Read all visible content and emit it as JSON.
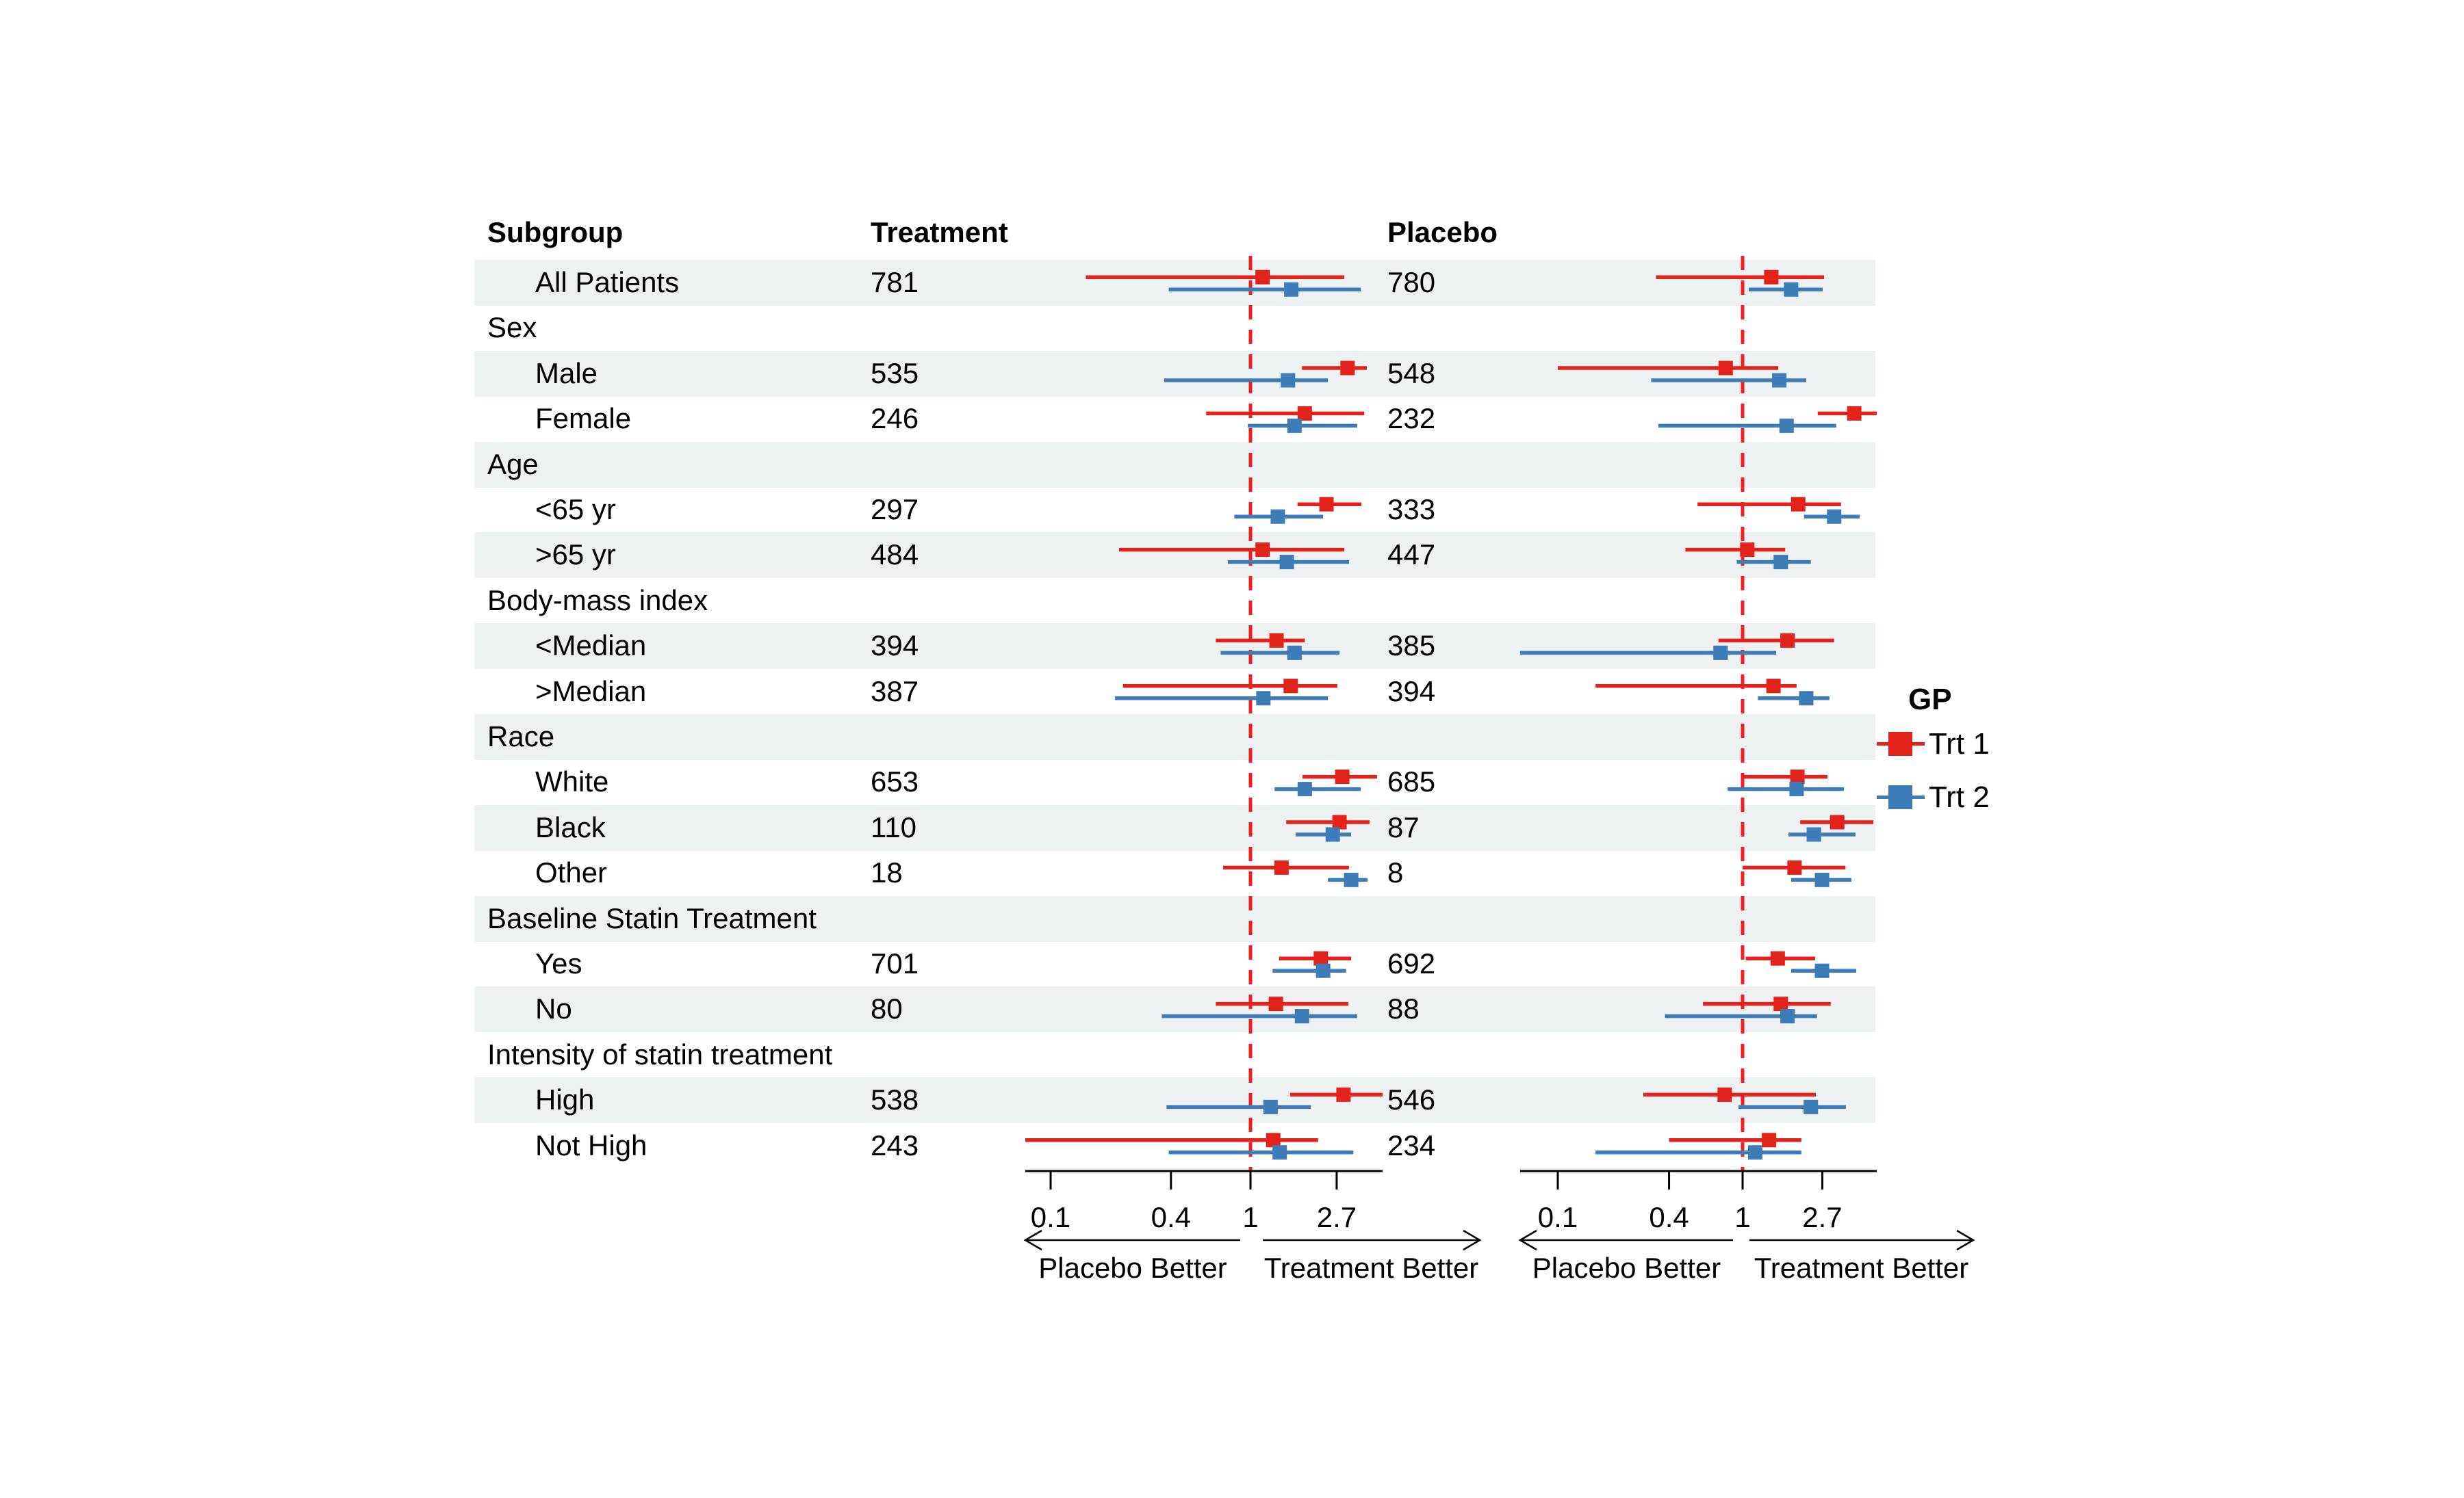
{
  "colors": {
    "trt1": "#E2231C",
    "trt2": "#3E7CB7",
    "reference_line": "#EE2024",
    "band": "#EDF1F2",
    "axis": "#000000"
  },
  "columns": {
    "subgroup": "Subgroup",
    "treatment": "Treatment",
    "placebo": "Placebo"
  },
  "legend": {
    "title": "GP",
    "items": [
      {
        "label": "Trt 1",
        "series": "trt1"
      },
      {
        "label": "Trt 2",
        "series": "trt2"
      }
    ]
  },
  "chart_data": {
    "type": "scatter",
    "variant": "forest-plot",
    "x_scale": "log",
    "x_ticks": [
      "0.1",
      "0.4",
      "1",
      "2.7"
    ],
    "x_tick_values": [
      0.1,
      0.4,
      1,
      2.7
    ],
    "reference_value": 1,
    "direction_labels": {
      "left": "Placebo Better",
      "right": "Treatment Better"
    },
    "series_names": [
      "Trt 1",
      "Trt 2"
    ],
    "rows": [
      {
        "label": "All Patients",
        "section_header": false,
        "treatment_n": "781",
        "placebo_n": "780",
        "panel1": {
          "trt1": {
            "est": 1.15,
            "lo": 0.15,
            "hi": 2.95
          },
          "trt2": {
            "est": 1.6,
            "lo": 0.39,
            "hi": 3.56
          }
        },
        "panel2": {
          "trt1": {
            "est": 1.43,
            "lo": 0.34,
            "hi": 2.76
          },
          "trt2": {
            "est": 1.83,
            "lo": 1.08,
            "hi": 2.71
          }
        }
      },
      {
        "label": "Sex",
        "section_header": true
      },
      {
        "label": "Male",
        "section_header": false,
        "treatment_n": "535",
        "placebo_n": "548",
        "panel1": {
          "trt1": {
            "est": 3.06,
            "lo": 1.81,
            "hi": 3.82
          },
          "trt2": {
            "est": 1.54,
            "lo": 0.37,
            "hi": 2.44
          }
        },
        "panel2": {
          "trt1": {
            "est": 0.81,
            "lo": 0.1,
            "hi": 1.56
          },
          "trt2": {
            "est": 1.58,
            "lo": 0.32,
            "hi": 2.21
          }
        }
      },
      {
        "label": "Female",
        "section_header": false,
        "treatment_n": "246",
        "placebo_n": "232",
        "panel1": {
          "trt1": {
            "est": 1.87,
            "lo": 0.6,
            "hi": 3.71
          },
          "trt2": {
            "est": 1.66,
            "lo": 0.97,
            "hi": 3.42
          }
        },
        "panel2": {
          "trt1": {
            "est": 4.02,
            "lo": 2.55,
            "hi": 5.6
          },
          "trt2": {
            "est": 1.73,
            "lo": 0.35,
            "hi": 3.21
          }
        }
      },
      {
        "label": "Age",
        "section_header": true
      },
      {
        "label": "<65 yr",
        "section_header": false,
        "treatment_n": "297",
        "placebo_n": "333",
        "panel1": {
          "trt1": {
            "est": 2.4,
            "lo": 1.72,
            "hi": 3.59
          },
          "trt2": {
            "est": 1.37,
            "lo": 0.83,
            "hi": 2.31
          }
        },
        "panel2": {
          "trt1": {
            "est": 2.0,
            "lo": 0.57,
            "hi": 3.41
          },
          "trt2": {
            "est": 3.13,
            "lo": 2.15,
            "hi": 4.3
          }
        }
      },
      {
        "label": ">65 yr",
        "section_header": false,
        "treatment_n": "484",
        "placebo_n": "447",
        "panel1": {
          "trt1": {
            "est": 1.15,
            "lo": 0.22,
            "hi": 2.95
          },
          "trt2": {
            "est": 1.52,
            "lo": 0.77,
            "hi": 3.11
          }
        },
        "panel2": {
          "trt1": {
            "est": 1.06,
            "lo": 0.49,
            "hi": 1.7
          },
          "trt2": {
            "est": 1.61,
            "lo": 0.93,
            "hi": 2.34
          }
        }
      },
      {
        "label": "Body-mass index",
        "section_header": true
      },
      {
        "label": "<Median",
        "section_header": false,
        "treatment_n": "394",
        "placebo_n": "385",
        "panel1": {
          "trt1": {
            "est": 1.35,
            "lo": 0.67,
            "hi": 1.87
          },
          "trt2": {
            "est": 1.66,
            "lo": 0.71,
            "hi": 2.79
          }
        },
        "panel2": {
          "trt1": {
            "est": 1.75,
            "lo": 0.74,
            "hi": 3.13
          },
          "trt2": {
            "est": 0.76,
            "lo": 0.06,
            "hi": 1.52
          }
        }
      },
      {
        "label": ">Median",
        "section_header": false,
        "treatment_n": "387",
        "placebo_n": "394",
        "panel1": {
          "trt1": {
            "est": 1.59,
            "lo": 0.23,
            "hi": 2.72
          },
          "trt2": {
            "est": 1.16,
            "lo": 0.21,
            "hi": 2.44
          }
        },
        "panel2": {
          "trt1": {
            "est": 1.47,
            "lo": 0.16,
            "hi": 1.96
          },
          "trt2": {
            "est": 2.21,
            "lo": 1.21,
            "hi": 2.95
          }
        }
      },
      {
        "label": "Race",
        "section_header": true
      },
      {
        "label": "White",
        "section_header": false,
        "treatment_n": "653",
        "placebo_n": "685",
        "panel1": {
          "trt1": {
            "est": 2.88,
            "lo": 1.82,
            "hi": 4.3
          },
          "trt2": {
            "est": 1.87,
            "lo": 1.32,
            "hi": 3.56
          }
        },
        "panel2": {
          "trt1": {
            "est": 1.98,
            "lo": 1.0,
            "hi": 2.88
          },
          "trt2": {
            "est": 1.96,
            "lo": 0.83,
            "hi": 3.53
          }
        }
      },
      {
        "label": "Black",
        "section_header": false,
        "treatment_n": "110",
        "placebo_n": "87",
        "panel1": {
          "trt1": {
            "est": 2.79,
            "lo": 1.51,
            "hi": 3.94
          },
          "trt2": {
            "est": 2.58,
            "lo": 1.68,
            "hi": 3.19
          }
        },
        "panel2": {
          "trt1": {
            "est": 3.25,
            "lo": 2.05,
            "hi": 5.1
          },
          "trt2": {
            "est": 2.43,
            "lo": 1.77,
            "hi": 4.08
          }
        }
      },
      {
        "label": "Other",
        "section_header": false,
        "treatment_n": "18",
        "placebo_n": "8",
        "panel1": {
          "trt1": {
            "est": 1.43,
            "lo": 0.73,
            "hi": 3.11
          },
          "trt2": {
            "est": 3.19,
            "lo": 2.44,
            "hi": 3.85
          }
        },
        "panel2": {
          "trt1": {
            "est": 1.91,
            "lo": 1.0,
            "hi": 3.6
          },
          "trt2": {
            "est": 2.69,
            "lo": 1.83,
            "hi": 3.88
          }
        }
      },
      {
        "label": "Baseline Statin Treatment",
        "section_header": true
      },
      {
        "label": "Yes",
        "section_header": false,
        "treatment_n": "701",
        "placebo_n": "692",
        "panel1": {
          "trt1": {
            "est": 2.25,
            "lo": 1.39,
            "hi": 3.19
          },
          "trt2": {
            "est": 2.31,
            "lo": 1.29,
            "hi": 3.01
          }
        },
        "panel2": {
          "trt1": {
            "est": 1.55,
            "lo": 1.04,
            "hi": 2.47
          },
          "trt2": {
            "est": 2.69,
            "lo": 1.83,
            "hi": 4.12
          }
        }
      },
      {
        "label": "No",
        "section_header": false,
        "treatment_n": "80",
        "placebo_n": "88",
        "panel1": {
          "trt1": {
            "est": 1.34,
            "lo": 0.67,
            "hi": 3.09
          },
          "trt2": {
            "est": 1.81,
            "lo": 0.36,
            "hi": 3.42
          }
        },
        "panel2": {
          "trt1": {
            "est": 1.61,
            "lo": 0.61,
            "hi": 3.0
          },
          "trt2": {
            "est": 1.75,
            "lo": 0.38,
            "hi": 2.53
          }
        }
      },
      {
        "label": "Intensity of statin treatment",
        "section_header": true
      },
      {
        "label": "High",
        "section_header": false,
        "treatment_n": "538",
        "placebo_n": "546",
        "panel1": {
          "trt1": {
            "est": 2.92,
            "lo": 1.58,
            "hi": 4.73
          },
          "trt2": {
            "est": 1.26,
            "lo": 0.38,
            "hi": 2.0
          }
        },
        "panel2": {
          "trt1": {
            "est": 0.8,
            "lo": 0.29,
            "hi": 2.49
          },
          "trt2": {
            "est": 2.34,
            "lo": 0.95,
            "hi": 3.62
          }
        }
      },
      {
        "label": "Not High",
        "section_header": false,
        "treatment_n": "243",
        "placebo_n": "234",
        "panel1": {
          "trt1": {
            "est": 1.3,
            "lo": 0.07,
            "hi": 2.18
          },
          "trt2": {
            "est": 1.4,
            "lo": 0.39,
            "hi": 3.27
          }
        },
        "panel2": {
          "trt1": {
            "est": 1.39,
            "lo": 0.4,
            "hi": 2.08
          },
          "trt2": {
            "est": 1.17,
            "lo": 0.16,
            "hi": 2.08
          }
        }
      }
    ]
  }
}
